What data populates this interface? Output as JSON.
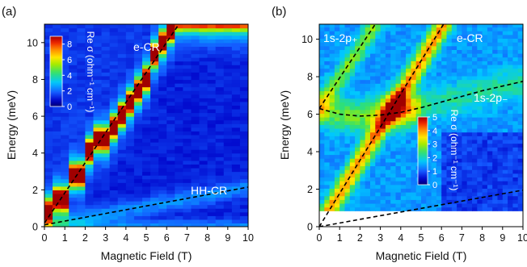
{
  "chart_data": [
    {
      "panel": "(a)",
      "type": "heatmap",
      "xlabel": "Magnetic Field (T)",
      "ylabel": "Energy (meV)",
      "xlim": [
        0,
        10
      ],
      "ylim": [
        0,
        11
      ],
      "xticks": [
        "0",
        "1",
        "2",
        "3",
        "4",
        "5",
        "6",
        "7",
        "8",
        "9",
        "10"
      ],
      "yticks": [
        "0",
        "2",
        "4",
        "6",
        "8",
        "10"
      ],
      "colorbar": {
        "label": "Re σ (ohm⁻¹ cm⁻¹)",
        "range": [
          0,
          9
        ],
        "ticks": [
          "0",
          "2",
          "4",
          "6",
          "8"
        ]
      },
      "annotations": [
        "e-CR",
        "HH-CR"
      ],
      "fit_lines": [
        {
          "name": "e-CR",
          "x": [
            0,
            6.6
          ],
          "y": [
            0.2,
            11
          ]
        },
        {
          "name": "HH-CR",
          "x": [
            0,
            10
          ],
          "y": [
            0.1,
            2.15
          ]
        }
      ],
      "features": [
        {
          "name": "e-CR",
          "type": "stepped-ridge",
          "fields_T": [
            0.4,
            0.8,
            1.2,
            1.6,
            2.0,
            2.4,
            2.8,
            3.2,
            3.6,
            4.0,
            4.4,
            4.8,
            5.2,
            5.6,
            6.0,
            6.4,
            6.8
          ],
          "peak_re_sigma": 9
        },
        {
          "name": "HH-CR",
          "type": "weak-broad-line",
          "peak_re_sigma": 2.5
        }
      ],
      "background_re_sigma": 1.1
    },
    {
      "panel": "(b)",
      "type": "heatmap",
      "xlabel": "Magnetic Field (T)",
      "ylabel": "Energy (meV)",
      "xlim": [
        0,
        10
      ],
      "ylim": [
        0,
        10.8
      ],
      "xticks": [
        "0",
        "1",
        "2",
        "3",
        "4",
        "5",
        "6",
        "7",
        "8",
        "9",
        "10"
      ],
      "yticks": [
        "0",
        "2",
        "4",
        "6",
        "8",
        "10"
      ],
      "data_ylim": [
        0.85,
        10.8
      ],
      "colorbar": {
        "label": "Re σ (ohm⁻¹ cm⁻¹)",
        "range": [
          0,
          5
        ],
        "ticks": [
          "0",
          "1",
          "2",
          "3",
          "4",
          "5"
        ]
      },
      "annotations": [
        "1s-2p₊",
        "e-CR",
        "1s-2p₋"
      ],
      "fit_lines": [
        {
          "name": "1s-2p+",
          "x": [
            0,
            2.75
          ],
          "y": [
            6.3,
            10.8
          ]
        },
        {
          "name": "e-CR",
          "x": [
            0,
            6.1
          ],
          "y": [
            0,
            10.8
          ]
        },
        {
          "name": "1s-2p-",
          "type": "curve",
          "x": [
            0,
            1,
            2,
            3,
            4,
            5,
            6,
            7,
            8,
            9,
            10
          ],
          "y": [
            6.3,
            6.0,
            5.9,
            5.95,
            6.1,
            6.35,
            6.65,
            6.95,
            7.25,
            7.5,
            7.75
          ]
        },
        {
          "name": "HH-CR",
          "x": [
            0,
            10
          ],
          "y": [
            0,
            1.95
          ]
        }
      ],
      "background_re_sigma": 1.4
    }
  ]
}
